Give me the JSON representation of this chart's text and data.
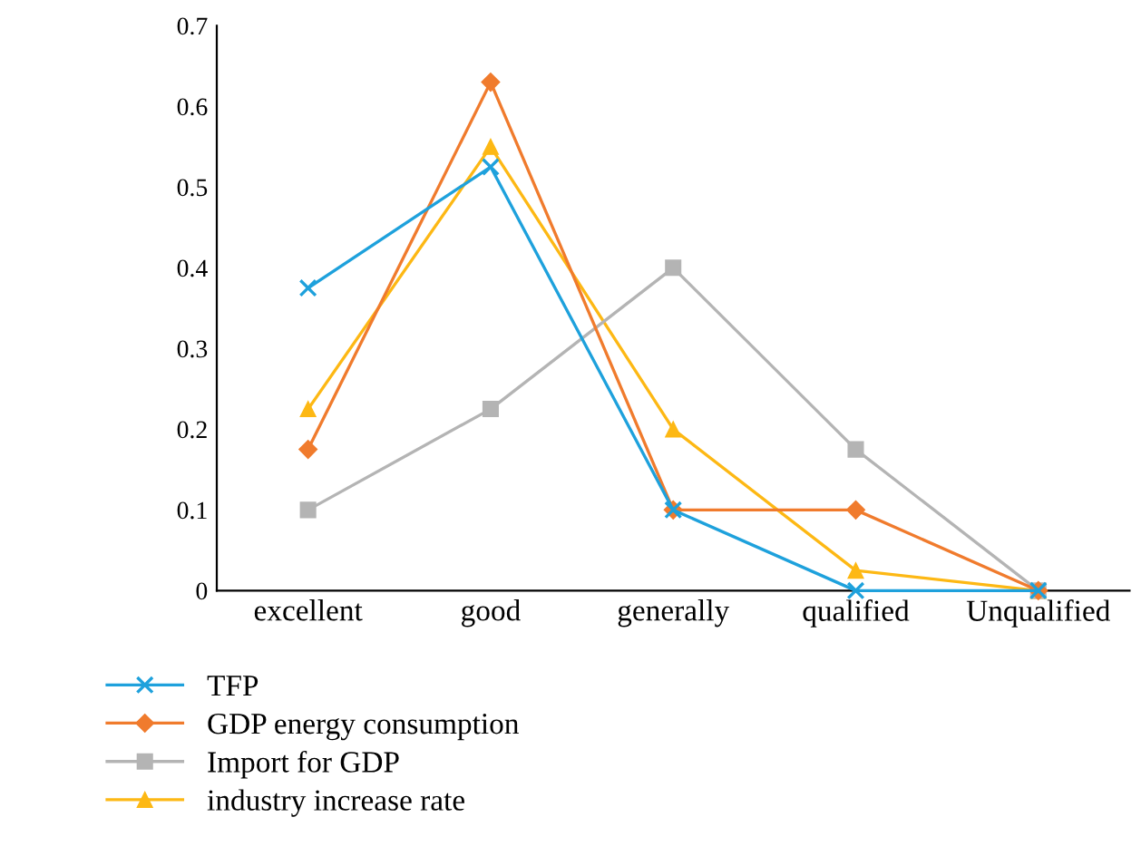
{
  "chart_data": {
    "type": "line",
    "categories": [
      "excellent",
      "good",
      "generally",
      "qualified",
      "Unqualified"
    ],
    "ylim": [
      0,
      0.7
    ],
    "yticks": [
      0,
      0.1,
      0.2,
      0.3,
      0.4,
      0.5,
      0.6,
      0.7
    ],
    "grid": false,
    "legend": "bottom left",
    "line_style": "solid",
    "series": [
      {
        "name": "TFP",
        "color": "#1ea1dc",
        "marker": "cross",
        "values": [
          0.375,
          0.525,
          0.1,
          0,
          0
        ]
      },
      {
        "name": "GDP energy consumption",
        "color": "#f07b2d",
        "marker": "diamond",
        "values": [
          0.175,
          0.63,
          0.1,
          0.1,
          0
        ]
      },
      {
        "name": "Import for GDP",
        "color": "#b4b4b4",
        "marker": "square",
        "values": [
          0.1,
          0.225,
          0.4,
          0.175,
          0
        ]
      },
      {
        "name": "industry increase rate",
        "color": "#fdb814",
        "marker": "triangle",
        "values": [
          0.225,
          0.55,
          0.2,
          0.025,
          0
        ]
      }
    ]
  }
}
